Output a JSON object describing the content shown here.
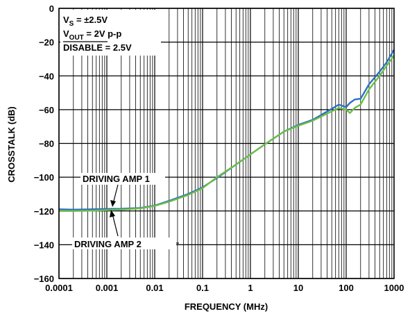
{
  "chart_data": {
    "type": "line",
    "xlabel": "FREQUENCY (MHz)",
    "ylabel": "CROSSTALK (dB)",
    "x_scale": "log",
    "xlim": [
      0.0001,
      1000
    ],
    "ylim": [
      -160,
      0
    ],
    "grid": true,
    "x_ticks": [
      "0.0001",
      "0.001",
      "0.01",
      "0.1",
      "1",
      "10",
      "100",
      "1000"
    ],
    "y_ticks": [
      "0",
      "−20",
      "−40",
      "−60",
      "−80",
      "−100",
      "−120",
      "−140",
      "−160"
    ],
    "conditions": {
      "vs_main": "V",
      "vs_sub": "S",
      "vs_rest": " = ±2.5V",
      "vout_main": "V",
      "vout_sub": "OUT",
      "vout_rest": " = 2V p-p",
      "disable_main": "DISABLE",
      "disable_rest": " = 2.5V"
    },
    "annotations": [
      "DRIVING AMP 1",
      "DRIVING AMP 2"
    ],
    "series": [
      {
        "color": "#2e6fc4",
        "x": [
          0.0001,
          0.0002,
          0.0005,
          0.001,
          0.002,
          0.005,
          0.01,
          0.02,
          0.05,
          0.1,
          0.2,
          0.5,
          1,
          2,
          5,
          10,
          20,
          50,
          70,
          100,
          120,
          150,
          200,
          300,
          500,
          700,
          1000
        ],
        "y": [
          -119,
          -119.2,
          -119,
          -118.8,
          -118.7,
          -118.2,
          -116.8,
          -114,
          -110,
          -106,
          -100.5,
          -92.5,
          -86.5,
          -80.5,
          -73,
          -69,
          -66,
          -59.5,
          -57,
          -58.5,
          -56,
          -54,
          -53.5,
          -45,
          -37.5,
          -32,
          -24.5
        ]
      },
      {
        "color": "#6cbe45",
        "x": [
          0.0001,
          0.0002,
          0.0005,
          0.001,
          0.002,
          0.005,
          0.01,
          0.02,
          0.05,
          0.1,
          0.2,
          0.5,
          1,
          2,
          5,
          10,
          20,
          50,
          70,
          100,
          120,
          150,
          200,
          300,
          500,
          700,
          1000
        ],
        "y": [
          -120,
          -120,
          -119.8,
          -119.5,
          -119.2,
          -118.5,
          -117,
          -114.5,
          -110.5,
          -106.5,
          -100,
          -92.5,
          -86.5,
          -80.5,
          -73,
          -69.5,
          -66.5,
          -61,
          -59,
          -60,
          -62,
          -59,
          -57,
          -48,
          -40,
          -34,
          -28
        ]
      }
    ]
  }
}
